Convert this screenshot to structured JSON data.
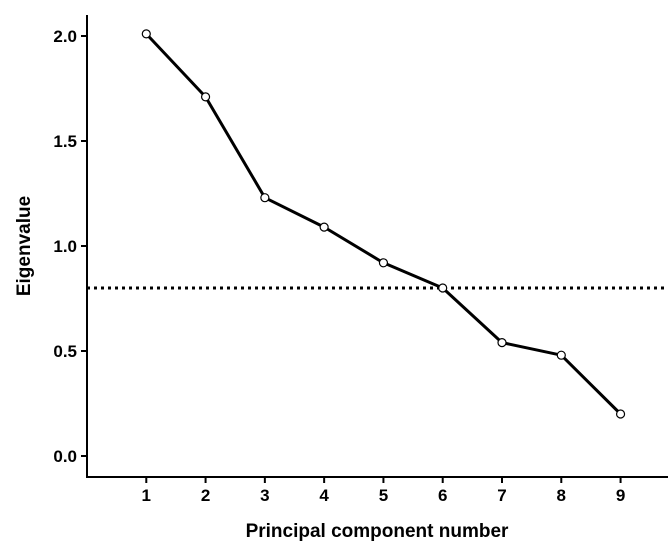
{
  "chart_data": {
    "type": "line",
    "title": "",
    "xlabel": "Principal component number",
    "ylabel": "Eigenvalue",
    "x": [
      1,
      2,
      3,
      4,
      5,
      6,
      7,
      8,
      9
    ],
    "series": [
      {
        "values": [
          2.01,
          1.71,
          1.23,
          1.09,
          0.92,
          0.8,
          0.54,
          0.48,
          0.2
        ]
      }
    ],
    "xlim": [
      0,
      9.8
    ],
    "ylim": [
      -0.1,
      2.1
    ],
    "yticks": [
      0.0,
      0.5,
      1.0,
      1.5,
      2.0
    ],
    "ytick_labels": [
      "0.0",
      "0.5",
      "1.0",
      "1.5",
      "2.0"
    ],
    "xtick_labels": [
      "1",
      "2",
      "3",
      "4",
      "5",
      "6",
      "7",
      "8",
      "9"
    ],
    "reference_line": {
      "y": 0.8,
      "style": "dotted"
    },
    "markers": "open-circle",
    "grid": false,
    "legend": "none",
    "line_color": "#000000"
  }
}
